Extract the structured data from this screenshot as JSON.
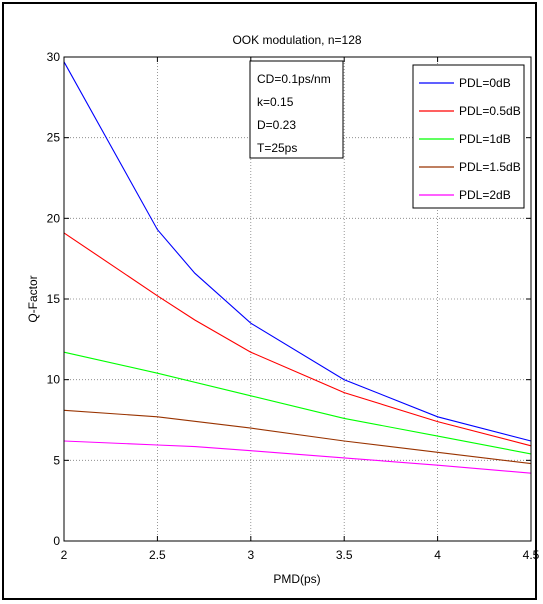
{
  "chart_data": {
    "type": "line",
    "title": "OOK modulation, n=128",
    "xlabel": "PMD(ps)",
    "ylabel": "Q-Factor",
    "xlim": [
      2,
      4.5
    ],
    "ylim": [
      0,
      30
    ],
    "xticks": [
      "2",
      "2.5",
      "3",
      "3.5",
      "4",
      "4.5"
    ],
    "yticks": [
      "0",
      "5",
      "10",
      "15",
      "20",
      "25",
      "30"
    ],
    "grid": true,
    "legend_position": "top-right",
    "annotation": [
      "CD=0.1ps/nm",
      "k=0.15",
      "D=0.23",
      "T=25ps"
    ],
    "series": [
      {
        "name": "PDL=0dB",
        "color": "#0000ff",
        "x": [
          2,
          2.5,
          2.7,
          3,
          3.5,
          4,
          4.5
        ],
        "y": [
          29.7,
          19.3,
          16.6,
          13.5,
          10.0,
          7.7,
          6.2
        ]
      },
      {
        "name": "PDL=0.5dB",
        "color": "#ff0000",
        "x": [
          2,
          2.5,
          2.7,
          3,
          3.5,
          4,
          4.5
        ],
        "y": [
          19.1,
          15.2,
          13.7,
          11.7,
          9.2,
          7.4,
          5.9
        ]
      },
      {
        "name": "PDL=1dB",
        "color": "#00ff00",
        "x": [
          2,
          2.5,
          3,
          3.5,
          4,
          4.5
        ],
        "y": [
          11.7,
          10.4,
          9.0,
          7.6,
          6.5,
          5.4
        ]
      },
      {
        "name": "PDL=1.5dB",
        "color": "#993300",
        "x": [
          2,
          2.5,
          3,
          3.5,
          4,
          4.5
        ],
        "y": [
          8.1,
          7.7,
          7.0,
          6.2,
          5.5,
          4.8
        ]
      },
      {
        "name": "PDL=2dB",
        "color": "#ff00ff",
        "x": [
          2,
          2.5,
          2.7,
          3,
          3.5,
          4,
          4.5
        ],
        "y": [
          6.2,
          5.95,
          5.85,
          5.6,
          5.15,
          4.7,
          4.2
        ]
      }
    ]
  }
}
